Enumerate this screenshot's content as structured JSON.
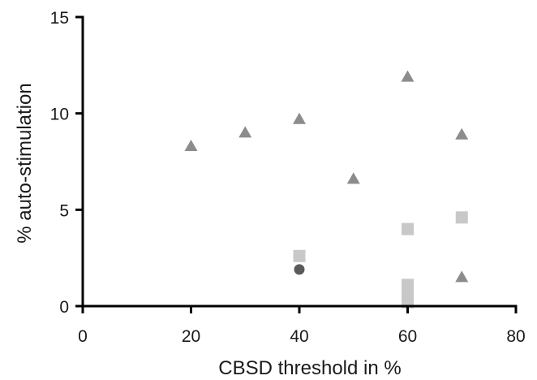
{
  "chart_data": {
    "type": "scatter",
    "xlabel": "CBSD threshold in %",
    "ylabel": "% auto-stimulation",
    "xlim": [
      0,
      80
    ],
    "ylim": [
      0,
      15
    ],
    "x_ticks": [
      0,
      20,
      40,
      60,
      80
    ],
    "y_ticks": [
      0,
      5,
      10,
      15
    ],
    "x_tick_labels": [
      "0",
      "20",
      "40",
      "60",
      "80"
    ],
    "y_tick_labels": [
      "0",
      "5",
      "10",
      "15"
    ],
    "grid": false,
    "legend": "none",
    "series": [
      {
        "marker": "triangle",
        "color": "#8c8c8c",
        "points": [
          {
            "x": 20,
            "y": 8.3
          },
          {
            "x": 30,
            "y": 9.0
          },
          {
            "x": 40,
            "y": 9.7
          },
          {
            "x": 50,
            "y": 6.6
          },
          {
            "x": 60,
            "y": 11.9
          },
          {
            "x": 70,
            "y": 8.9
          },
          {
            "x": 70,
            "y": 1.5
          }
        ]
      },
      {
        "marker": "square",
        "color": "#c8c8c8",
        "points": [
          {
            "x": 40,
            "y": 2.6
          },
          {
            "x": 60,
            "y": 4.0
          },
          {
            "x": 60,
            "y": 1.1
          },
          {
            "x": 60,
            "y": 0.8
          },
          {
            "x": 60,
            "y": 0.5
          },
          {
            "x": 60,
            "y": 0.2
          },
          {
            "x": 70,
            "y": 4.6
          }
        ]
      },
      {
        "marker": "circle",
        "color": "#5a5a5a",
        "points": [
          {
            "x": 40,
            "y": 1.9
          }
        ]
      }
    ]
  }
}
